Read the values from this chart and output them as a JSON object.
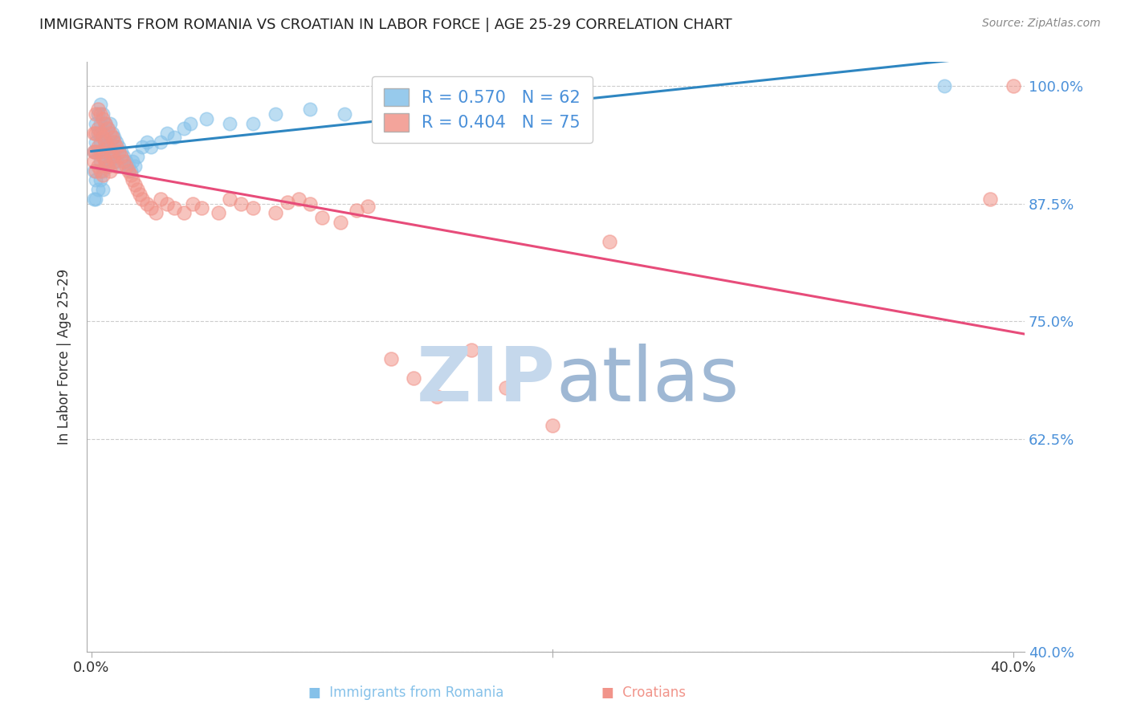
{
  "title": "IMMIGRANTS FROM ROMANIA VS CROATIAN IN LABOR FORCE | AGE 25-29 CORRELATION CHART",
  "source": "Source: ZipAtlas.com",
  "ylabel": "In Labor Force | Age 25-29",
  "ylim": [
    0.4,
    1.025
  ],
  "xlim": [
    -0.002,
    0.405
  ],
  "yticks": [
    0.4,
    0.625,
    0.75,
    0.875,
    1.0
  ],
  "ytick_labels": [
    "40.0%",
    "62.5%",
    "75.0%",
    "87.5%",
    "100.0%"
  ],
  "romania_color": "#85C1E9",
  "croatian_color": "#F1948A",
  "romania_line_color": "#2E86C1",
  "croatian_line_color": "#E74C7A",
  "romania_R": 0.57,
  "romania_N": 62,
  "croatian_R": 0.404,
  "croatian_N": 75,
  "right_tick_color": "#4A90D9",
  "background_color": "#FFFFFF",
  "grid_color": "#CCCCCC",
  "watermark_zip_color": "#C5D8EC",
  "watermark_atlas_color": "#9FB8D4",
  "romania_scatter_x": [
    0.001,
    0.001,
    0.001,
    0.002,
    0.002,
    0.002,
    0.002,
    0.003,
    0.003,
    0.003,
    0.003,
    0.004,
    0.004,
    0.004,
    0.004,
    0.004,
    0.005,
    0.005,
    0.005,
    0.005,
    0.005,
    0.006,
    0.006,
    0.006,
    0.007,
    0.007,
    0.007,
    0.008,
    0.008,
    0.008,
    0.009,
    0.009,
    0.01,
    0.01,
    0.011,
    0.011,
    0.012,
    0.012,
    0.013,
    0.014,
    0.015,
    0.016,
    0.017,
    0.018,
    0.019,
    0.02,
    0.022,
    0.024,
    0.026,
    0.03,
    0.033,
    0.036,
    0.04,
    0.043,
    0.05,
    0.06,
    0.07,
    0.08,
    0.095,
    0.11,
    0.13,
    0.37
  ],
  "romania_scatter_y": [
    0.91,
    0.93,
    0.88,
    0.96,
    0.94,
    0.9,
    0.88,
    0.97,
    0.95,
    0.93,
    0.89,
    0.98,
    0.96,
    0.94,
    0.92,
    0.9,
    0.97,
    0.95,
    0.93,
    0.91,
    0.89,
    0.96,
    0.94,
    0.92,
    0.955,
    0.935,
    0.915,
    0.96,
    0.94,
    0.92,
    0.95,
    0.93,
    0.945,
    0.925,
    0.94,
    0.92,
    0.935,
    0.915,
    0.93,
    0.925,
    0.92,
    0.915,
    0.91,
    0.92,
    0.915,
    0.925,
    0.935,
    0.94,
    0.935,
    0.94,
    0.95,
    0.945,
    0.955,
    0.96,
    0.965,
    0.96,
    0.96,
    0.97,
    0.975,
    0.97,
    0.98,
    1.0
  ],
  "croatian_scatter_x": [
    0.001,
    0.001,
    0.001,
    0.002,
    0.002,
    0.002,
    0.002,
    0.003,
    0.003,
    0.003,
    0.003,
    0.004,
    0.004,
    0.004,
    0.004,
    0.005,
    0.005,
    0.005,
    0.005,
    0.006,
    0.006,
    0.006,
    0.007,
    0.007,
    0.007,
    0.008,
    0.008,
    0.008,
    0.009,
    0.009,
    0.01,
    0.01,
    0.011,
    0.011,
    0.012,
    0.013,
    0.014,
    0.015,
    0.016,
    0.017,
    0.018,
    0.019,
    0.02,
    0.021,
    0.022,
    0.024,
    0.026,
    0.028,
    0.03,
    0.033,
    0.036,
    0.04,
    0.044,
    0.048,
    0.055,
    0.06,
    0.065,
    0.07,
    0.08,
    0.085,
    0.09,
    0.095,
    0.1,
    0.108,
    0.115,
    0.12,
    0.13,
    0.14,
    0.15,
    0.165,
    0.18,
    0.2,
    0.225,
    0.39,
    0.4
  ],
  "croatian_scatter_y": [
    0.95,
    0.93,
    0.92,
    0.97,
    0.95,
    0.93,
    0.91,
    0.975,
    0.955,
    0.935,
    0.915,
    0.97,
    0.95,
    0.93,
    0.91,
    0.965,
    0.945,
    0.925,
    0.905,
    0.96,
    0.94,
    0.92,
    0.955,
    0.935,
    0.915,
    0.95,
    0.93,
    0.91,
    0.945,
    0.925,
    0.94,
    0.92,
    0.935,
    0.915,
    0.93,
    0.925,
    0.92,
    0.915,
    0.91,
    0.905,
    0.9,
    0.895,
    0.89,
    0.885,
    0.88,
    0.875,
    0.87,
    0.865,
    0.88,
    0.875,
    0.87,
    0.865,
    0.875,
    0.87,
    0.865,
    0.88,
    0.875,
    0.87,
    0.865,
    0.876,
    0.88,
    0.875,
    0.86,
    0.855,
    0.868,
    0.872,
    0.71,
    0.69,
    0.67,
    0.72,
    0.68,
    0.64,
    0.835,
    0.88,
    1.0
  ]
}
